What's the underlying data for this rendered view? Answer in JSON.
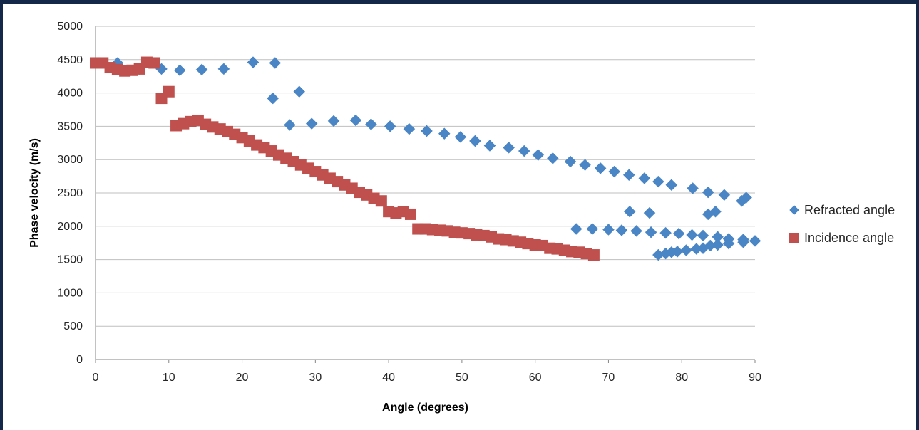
{
  "chart_data": {
    "type": "scatter",
    "xlabel": "Angle (degrees)",
    "ylabel": "Phase velocity (m/s)",
    "xlim": [
      0,
      90
    ],
    "ylim": [
      0,
      5000
    ],
    "x_ticks": [
      0,
      10,
      20,
      30,
      40,
      50,
      60,
      70,
      80,
      90
    ],
    "y_ticks": [
      0,
      500,
      1000,
      1500,
      2000,
      2500,
      3000,
      3500,
      4000,
      4500,
      5000
    ],
    "grid": "horizontal",
    "legend_position": "right",
    "series": [
      {
        "name": "Refracted angle",
        "marker": "diamond",
        "color": "#4a86c5",
        "points": [
          [
            0,
            4450
          ],
          [
            3,
            4450
          ],
          [
            6,
            4360
          ],
          [
            9,
            4360
          ],
          [
            11.5,
            4340
          ],
          [
            14.5,
            4350
          ],
          [
            17.5,
            4360
          ],
          [
            21.5,
            4460
          ],
          [
            24.5,
            4450
          ],
          [
            24.2,
            3920
          ],
          [
            27.8,
            4020
          ],
          [
            26.5,
            3520
          ],
          [
            29.5,
            3540
          ],
          [
            32.5,
            3580
          ],
          [
            35.5,
            3590
          ],
          [
            37.6,
            3530
          ],
          [
            40.2,
            3500
          ],
          [
            42.8,
            3460
          ],
          [
            45.2,
            3430
          ],
          [
            47.6,
            3390
          ],
          [
            49.8,
            3340
          ],
          [
            51.8,
            3280
          ],
          [
            53.8,
            3210
          ],
          [
            56.4,
            3180
          ],
          [
            58.5,
            3130
          ],
          [
            60.4,
            3070
          ],
          [
            62.4,
            3020
          ],
          [
            64.8,
            2970
          ],
          [
            66.8,
            2920
          ],
          [
            68.9,
            2870
          ],
          [
            70.8,
            2820
          ],
          [
            72.8,
            2770
          ],
          [
            74.9,
            2720
          ],
          [
            76.8,
            2670
          ],
          [
            78.6,
            2620
          ],
          [
            81.5,
            2570
          ],
          [
            83.6,
            2510
          ],
          [
            85.8,
            2470
          ],
          [
            88.2,
            2380
          ],
          [
            88.8,
            2430
          ],
          [
            72.9,
            2220
          ],
          [
            75.6,
            2200
          ],
          [
            83.6,
            2180
          ],
          [
            84.6,
            2220
          ],
          [
            65.6,
            1960
          ],
          [
            67.8,
            1960
          ],
          [
            70.0,
            1950
          ],
          [
            71.8,
            1940
          ],
          [
            73.8,
            1930
          ],
          [
            75.8,
            1910
          ],
          [
            77.8,
            1900
          ],
          [
            79.6,
            1890
          ],
          [
            81.4,
            1870
          ],
          [
            82.9,
            1860
          ],
          [
            84.9,
            1840
          ],
          [
            86.4,
            1810
          ],
          [
            88.4,
            1800
          ],
          [
            90,
            1780
          ],
          [
            88.4,
            1760
          ],
          [
            86.4,
            1740
          ],
          [
            84.9,
            1720
          ],
          [
            83.9,
            1710
          ],
          [
            82.9,
            1670
          ],
          [
            82.0,
            1660
          ],
          [
            80.6,
            1640
          ],
          [
            79.4,
            1620
          ],
          [
            78.6,
            1610
          ],
          [
            77.8,
            1590
          ],
          [
            76.8,
            1570
          ]
        ]
      },
      {
        "name": "Incidence angle",
        "marker": "square",
        "color": "#c0504d",
        "points": [
          [
            0,
            4450
          ],
          [
            1,
            4450
          ],
          [
            2,
            4380
          ],
          [
            3,
            4350
          ],
          [
            4,
            4330
          ],
          [
            5,
            4340
          ],
          [
            6,
            4360
          ],
          [
            7,
            4460
          ],
          [
            8,
            4450
          ],
          [
            9,
            3920
          ],
          [
            10,
            4020
          ],
          [
            11,
            3510
          ],
          [
            12,
            3540
          ],
          [
            13,
            3570
          ],
          [
            14,
            3590
          ],
          [
            15,
            3530
          ],
          [
            16,
            3490
          ],
          [
            17,
            3460
          ],
          [
            18,
            3420
          ],
          [
            19,
            3380
          ],
          [
            20,
            3330
          ],
          [
            21,
            3280
          ],
          [
            22,
            3220
          ],
          [
            23,
            3180
          ],
          [
            24,
            3130
          ],
          [
            25,
            3070
          ],
          [
            26,
            3020
          ],
          [
            27,
            2970
          ],
          [
            28,
            2920
          ],
          [
            29,
            2870
          ],
          [
            30,
            2820
          ],
          [
            31,
            2770
          ],
          [
            32,
            2720
          ],
          [
            33,
            2670
          ],
          [
            34,
            2620
          ],
          [
            35,
            2570
          ],
          [
            36,
            2510
          ],
          [
            37,
            2470
          ],
          [
            38,
            2420
          ],
          [
            39,
            2380
          ],
          [
            40,
            2220
          ],
          [
            41,
            2200
          ],
          [
            42,
            2220
          ],
          [
            43,
            2180
          ],
          [
            44,
            1960
          ],
          [
            45,
            1960
          ],
          [
            46,
            1950
          ],
          [
            47,
            1940
          ],
          [
            48,
            1930
          ],
          [
            49,
            1910
          ],
          [
            50,
            1900
          ],
          [
            51,
            1890
          ],
          [
            52,
            1870
          ],
          [
            53,
            1860
          ],
          [
            54,
            1840
          ],
          [
            55,
            1810
          ],
          [
            56,
            1800
          ],
          [
            57,
            1780
          ],
          [
            58,
            1760
          ],
          [
            59,
            1740
          ],
          [
            60,
            1720
          ],
          [
            61,
            1710
          ],
          [
            62,
            1670
          ],
          [
            63,
            1660
          ],
          [
            64,
            1640
          ],
          [
            65,
            1620
          ],
          [
            66,
            1610
          ],
          [
            67,
            1590
          ],
          [
            68,
            1570
          ]
        ]
      }
    ]
  }
}
